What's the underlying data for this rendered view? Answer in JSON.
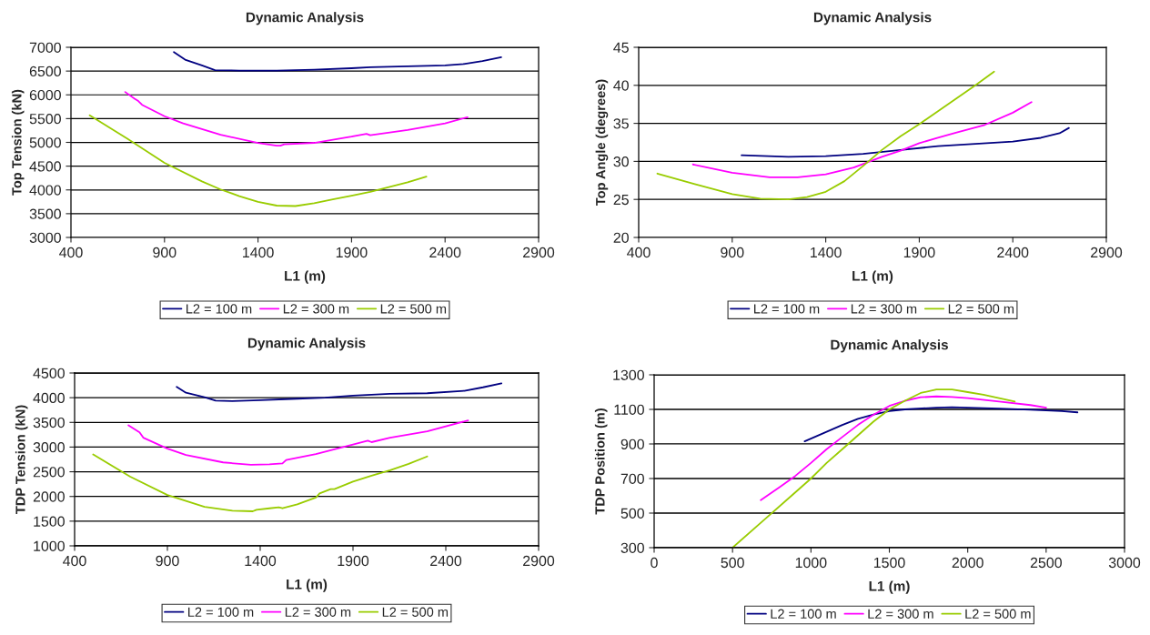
{
  "chart_data": [
    {
      "type": "line",
      "title": "Dynamic Analysis",
      "xlabel": "L1 (m)",
      "ylabel": "Top Tension (kN)",
      "xlim": [
        400,
        2900
      ],
      "xticks": [
        400,
        900,
        1400,
        1900,
        2400,
        2900
      ],
      "ylim": [
        3000,
        7000
      ],
      "yticks": [
        3000,
        3500,
        4000,
        4500,
        5000,
        5500,
        6000,
        6500,
        7000
      ],
      "grid": "y",
      "legend": "bottom",
      "marker": "none",
      "line_style": "solid",
      "series": [
        {
          "name": "L2 = 100 m",
          "color": "#000080",
          "x": [
            950,
            1010,
            1100,
            1170,
            1300,
            1500,
            1700,
            1900,
            2000,
            2200,
            2400,
            2500,
            2600,
            2700
          ],
          "values": [
            6900,
            6740,
            6620,
            6520,
            6510,
            6510,
            6530,
            6560,
            6580,
            6600,
            6620,
            6650,
            6710,
            6790
          ]
        },
        {
          "name": "L2 = 300 m",
          "color": "#ff00ff",
          "x": [
            690,
            740,
            760,
            780,
            900,
            1000,
            1200,
            1400,
            1500,
            1520,
            1540,
            1700,
            1900,
            1980,
            2000,
            2200,
            2400,
            2520
          ],
          "values": [
            6060,
            5920,
            5870,
            5790,
            5550,
            5400,
            5160,
            4990,
            4930,
            4930,
            4960,
            4990,
            5120,
            5180,
            5150,
            5260,
            5400,
            5530
          ]
        },
        {
          "name": "L2 = 500 m",
          "color": "#99cc00",
          "x": [
            500,
            700,
            900,
            1100,
            1200,
            1300,
            1400,
            1500,
            1600,
            1700,
            1800,
            1900,
            2000,
            2100,
            2200,
            2300
          ],
          "values": [
            5570,
            5080,
            4570,
            4180,
            4010,
            3870,
            3750,
            3670,
            3660,
            3720,
            3800,
            3880,
            3960,
            4060,
            4160,
            4280
          ]
        }
      ]
    },
    {
      "type": "line",
      "title": "Dynamic Analysis",
      "xlabel": "L1 (m)",
      "ylabel": "Top Angle (degrees)",
      "xlim": [
        400,
        2900
      ],
      "xticks": [
        400,
        900,
        1400,
        1900,
        2400,
        2900
      ],
      "ylim": [
        20,
        45
      ],
      "yticks": [
        20,
        25,
        30,
        35,
        40,
        45
      ],
      "grid": "y",
      "legend": "bottom",
      "marker": "none",
      "line_style": "solid",
      "series": [
        {
          "name": "L2 = 100 m",
          "color": "#000080",
          "x": [
            950,
            1200,
            1400,
            1600,
            1800,
            2000,
            2200,
            2400,
            2550,
            2650,
            2700
          ],
          "values": [
            30.8,
            30.6,
            30.7,
            31.0,
            31.5,
            32.0,
            32.3,
            32.6,
            33.1,
            33.7,
            34.4
          ]
        },
        {
          "name": "L2 = 300 m",
          "color": "#ff00ff",
          "x": [
            690,
            900,
            1100,
            1250,
            1400,
            1550,
            1700,
            1800,
            1900,
            2000,
            2100,
            2250,
            2400,
            2500
          ],
          "values": [
            29.6,
            28.5,
            27.9,
            27.9,
            28.3,
            29.2,
            30.6,
            31.4,
            32.4,
            33.1,
            33.8,
            34.8,
            36.4,
            37.8
          ]
        },
        {
          "name": "L2 = 500 m",
          "color": "#99cc00",
          "x": [
            500,
            700,
            900,
            1050,
            1200,
            1300,
            1400,
            1500,
            1600,
            1700,
            1800,
            1900,
            2000,
            2100,
            2200,
            2300
          ],
          "values": [
            28.4,
            27.0,
            25.7,
            25.1,
            25.0,
            25.3,
            26.0,
            27.4,
            29.4,
            31.5,
            33.3,
            34.9,
            36.6,
            38.3,
            40.0,
            41.8
          ]
        }
      ]
    },
    {
      "type": "line",
      "title": "Dynamic Analysis",
      "xlabel": "L1 (m)",
      "ylabel": "TDP Tension (kN)",
      "xlim": [
        400,
        2900
      ],
      "xticks": [
        400,
        900,
        1400,
        1900,
        2400,
        2900
      ],
      "ylim": [
        1000,
        4500
      ],
      "yticks": [
        1000,
        1500,
        2000,
        2500,
        3000,
        3500,
        4000,
        4500
      ],
      "grid": "y",
      "legend": "bottom",
      "marker": "none",
      "line_style": "solid",
      "series": [
        {
          "name": "L2 = 100 m",
          "color": "#000080",
          "x": [
            950,
            1000,
            1100,
            1160,
            1250,
            1400,
            1600,
            1750,
            1900,
            2100,
            2300,
            2500,
            2600,
            2700
          ],
          "values": [
            4220,
            4100,
            4010,
            3940,
            3930,
            3950,
            3980,
            4000,
            4040,
            4080,
            4090,
            4140,
            4210,
            4290
          ]
        },
        {
          "name": "L2 = 300 m",
          "color": "#ff00ff",
          "x": [
            690,
            750,
            770,
            900,
            1000,
            1200,
            1350,
            1450,
            1520,
            1540,
            1700,
            1900,
            1980,
            2000,
            2100,
            2300,
            2520
          ],
          "values": [
            3440,
            3300,
            3190,
            2970,
            2840,
            2690,
            2640,
            2650,
            2670,
            2740,
            2860,
            3050,
            3130,
            3100,
            3190,
            3320,
            3540
          ]
        },
        {
          "name": "L2 = 500 m",
          "color": "#99cc00",
          "x": [
            500,
            700,
            900,
            1100,
            1250,
            1360,
            1380,
            1450,
            1500,
            1520,
            1600,
            1700,
            1720,
            1780,
            1800,
            1900,
            2000,
            2100,
            2200,
            2300
          ],
          "values": [
            2850,
            2400,
            2030,
            1790,
            1710,
            1700,
            1730,
            1760,
            1780,
            1760,
            1840,
            1980,
            2060,
            2150,
            2150,
            2300,
            2420,
            2530,
            2660,
            2810
          ]
        }
      ]
    },
    {
      "type": "line",
      "title": "Dynamic Analysis",
      "xlabel": "L1 (m)",
      "ylabel": "TDP Position (m)",
      "xlim": [
        0,
        3000
      ],
      "xticks": [
        0,
        500,
        1000,
        1500,
        2000,
        2500,
        3000
      ],
      "ylim": [
        300,
        1300
      ],
      "yticks": [
        300,
        500,
        700,
        900,
        1100,
        1300
      ],
      "grid": "y",
      "legend": "bottom",
      "marker": "none",
      "line_style": "solid",
      "series": [
        {
          "name": "L2 = 100 m",
          "color": "#000080",
          "x": [
            960,
            1100,
            1200,
            1300,
            1400,
            1500,
            1600,
            1800,
            1900,
            2000,
            2200,
            2400,
            2600,
            2700
          ],
          "values": [
            915,
            970,
            1010,
            1045,
            1070,
            1090,
            1100,
            1110,
            1112,
            1110,
            1105,
            1098,
            1090,
            1083
          ]
        },
        {
          "name": "L2 = 300 m",
          "color": "#ff00ff",
          "x": [
            680,
            800,
            900,
            1000,
            1100,
            1200,
            1300,
            1400,
            1500,
            1600,
            1700,
            1800,
            1900,
            2000,
            2200,
            2400,
            2500
          ],
          "values": [
            575,
            650,
            715,
            790,
            870,
            940,
            1010,
            1070,
            1120,
            1150,
            1170,
            1175,
            1172,
            1165,
            1145,
            1125,
            1110
          ]
        },
        {
          "name": "L2 = 500 m",
          "color": "#99cc00",
          "x": [
            500,
            700,
            900,
            1000,
            1100,
            1200,
            1300,
            1400,
            1500,
            1600,
            1700,
            1800,
            1900,
            2000,
            2100,
            2200,
            2300
          ],
          "values": [
            300,
            460,
            620,
            700,
            790,
            870,
            950,
            1030,
            1100,
            1150,
            1195,
            1215,
            1215,
            1200,
            1185,
            1165,
            1145
          ]
        }
      ]
    }
  ]
}
